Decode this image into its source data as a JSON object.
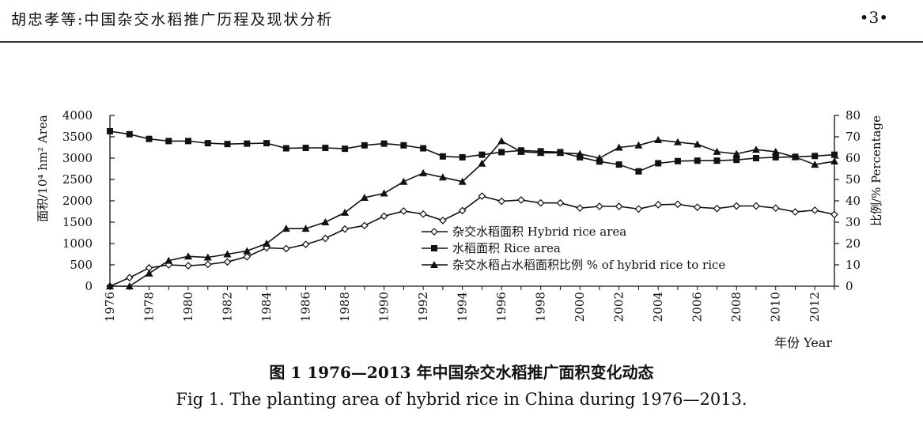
{
  "header": {
    "running_title": "胡忠孝等:中国杂交水稻推广历程及现状分析",
    "page_number": "•3•"
  },
  "caption": {
    "zh": "图 1    1976—2013 年中国杂交水稻推广面积变化动态",
    "en": "Fig 1.  The planting area of hybrid rice in China during 1976—2013."
  },
  "chart_data": {
    "type": "line",
    "title": "",
    "xlabel": "年份 Year",
    "ylabel_left": "面积/10⁴ hm² Area",
    "ylabel_right": "比例/% Percentage",
    "xlim": [
      1976,
      2013
    ],
    "ylim_left": [
      0,
      4000
    ],
    "ylim_right": [
      0,
      80
    ],
    "x_ticks": [
      1976,
      1978,
      1980,
      1982,
      1984,
      1986,
      1988,
      1990,
      1992,
      1994,
      1996,
      1998,
      2000,
      2002,
      2004,
      2006,
      2008,
      2010,
      2012
    ],
    "y_ticks_left": [
      0,
      500,
      1000,
      1500,
      2000,
      2500,
      3000,
      3500,
      4000
    ],
    "y_ticks_right": [
      0,
      10,
      20,
      30,
      40,
      50,
      60,
      70,
      80
    ],
    "grid": false,
    "legend_position": "center-right",
    "x": [
      1976,
      1977,
      1978,
      1979,
      1980,
      1981,
      1982,
      1983,
      1984,
      1985,
      1986,
      1987,
      1988,
      1989,
      1990,
      1991,
      1992,
      1993,
      1994,
      1995,
      1996,
      1997,
      1998,
      1999,
      2000,
      2001,
      2002,
      2003,
      2004,
      2005,
      2006,
      2007,
      2008,
      2009,
      2010,
      2011,
      2012,
      2013
    ],
    "series": [
      {
        "name": "杂交水稻面积 Hybrid rice area",
        "axis": "left",
        "marker": "diamond-open",
        "values": [
          0,
          200,
          430,
          500,
          480,
          510,
          570,
          690,
          900,
          880,
          980,
          1120,
          1340,
          1420,
          1640,
          1760,
          1690,
          1540,
          1770,
          2110,
          1990,
          2020,
          1950,
          1950,
          1830,
          1870,
          1870,
          1810,
          1910,
          1920,
          1850,
          1820,
          1880,
          1880,
          1830,
          1740,
          1780,
          1680
        ]
      },
      {
        "name": "水稻面积 Rice area",
        "axis": "left",
        "marker": "square-filled",
        "values": [
          3630,
          3560,
          3450,
          3400,
          3400,
          3350,
          3330,
          3340,
          3350,
          3230,
          3240,
          3240,
          3220,
          3300,
          3340,
          3300,
          3230,
          3040,
          3020,
          3080,
          3140,
          3180,
          3160,
          3140,
          3020,
          2920,
          2850,
          2690,
          2880,
          2930,
          2940,
          2940,
          2960,
          3000,
          3020,
          3030,
          3050,
          3080
        ]
      },
      {
        "name": "杂交水稻占水稻面积比例 % of hybrid rice to rice",
        "axis": "right",
        "marker": "triangle-filled",
        "values": [
          0,
          0,
          6,
          12,
          14,
          13.5,
          15,
          16.5,
          20,
          27,
          27,
          30,
          34.5,
          41.5,
          43.5,
          49,
          53,
          51,
          49,
          57.5,
          68,
          63,
          62.5,
          62.5,
          62,
          60,
          65,
          66,
          68.5,
          67.5,
          66.5,
          63,
          62,
          64,
          63,
          60.5,
          57,
          58.5
        ]
      }
    ]
  }
}
